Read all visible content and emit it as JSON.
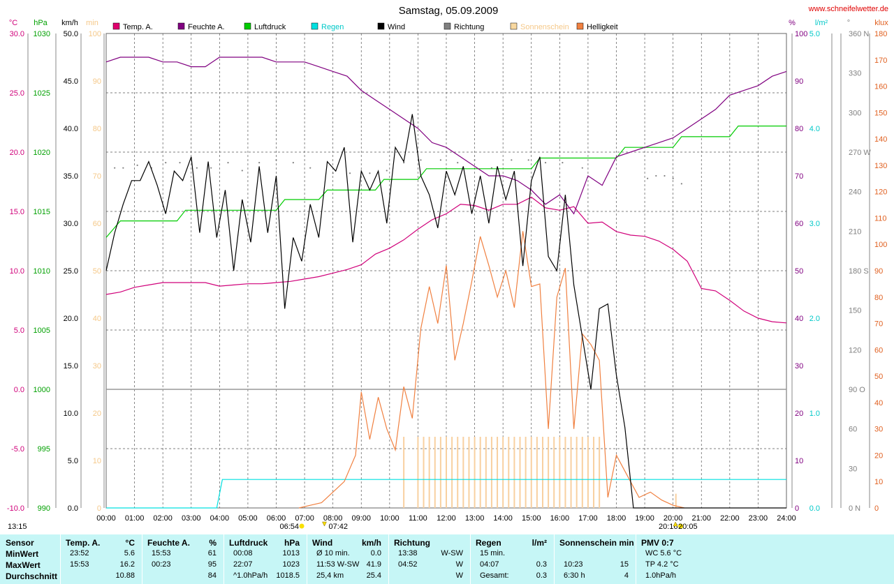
{
  "header": {
    "title": "Samstag, 05.09.2009",
    "site": "www.schneifelwetter.de"
  },
  "axes": {
    "temp": {
      "unit": "°C",
      "color": "#d0007a",
      "ticks": [
        "30.0",
        "25.0",
        "20.0",
        "15.0",
        "10.0",
        "5.0",
        "0.0",
        "-5.0",
        "-10.0"
      ]
    },
    "press": {
      "unit": "hPa",
      "color": "#00a000",
      "ticks": [
        "1030",
        "1025",
        "1020",
        "1015",
        "1010",
        "1005",
        "1000",
        "995",
        "990"
      ]
    },
    "wind": {
      "unit": "km/h",
      "color": "#000000",
      "ticks": [
        "50.0",
        "45.0",
        "40.0",
        "35.0",
        "30.0",
        "25.0",
        "20.0",
        "15.0",
        "10.0",
        "5.0",
        "0.0"
      ]
    },
    "sun": {
      "unit": "min",
      "color": "#f5c888",
      "ticks": [
        "100",
        "90",
        "80",
        "70",
        "60",
        "50",
        "40",
        "30",
        "20",
        "10",
        "0"
      ]
    },
    "hum": {
      "unit": "%",
      "color": "#800080",
      "ticks": [
        "100",
        "90",
        "80",
        "70",
        "60",
        "50",
        "40",
        "30",
        "20",
        "10",
        "0"
      ]
    },
    "rain": {
      "unit": "l/m²",
      "color": "#00c8c8",
      "ticks": [
        "5.0",
        "4.0",
        "3.0",
        "2.0",
        "1.0",
        "0.0"
      ]
    },
    "dir": {
      "unit": "°",
      "color": "#808080",
      "ticks": [
        "360 N",
        "330",
        "300",
        "270 W",
        "240",
        "210",
        "180 S",
        "150",
        "120",
        "90 O",
        "60",
        "30",
        "0 N"
      ]
    },
    "lux": {
      "unit": "klux",
      "color": "#e06020",
      "ticks": [
        "180",
        "170",
        "160",
        "150",
        "140",
        "130",
        "120",
        "110",
        "100",
        "90",
        "80",
        "70",
        "60",
        "50",
        "40",
        "30",
        "20",
        "10",
        "0"
      ]
    }
  },
  "legend": [
    {
      "label": "Temp. A.",
      "color": "#e0006e",
      "text_color": "#000000"
    },
    {
      "label": "Feuchte A.",
      "color": "#800080",
      "text_color": "#000000"
    },
    {
      "label": "Luftdruck",
      "color": "#00cc00",
      "text_color": "#000000"
    },
    {
      "label": "Regen",
      "color": "#00e0e0",
      "text_color": "#00c8c8"
    },
    {
      "label": "Wind",
      "color": "#000000",
      "text_color": "#000000"
    },
    {
      "label": "Richtung",
      "color": "#808080",
      "text_color": "#000000"
    },
    {
      "label": "Sonnenschein",
      "color": "#f8d8a0",
      "text_color": "#f5c888"
    },
    {
      "label": "Helligkeit",
      "color": "#f08040",
      "text_color": "#000000"
    }
  ],
  "chart_data": {
    "type": "line",
    "title": "Samstag, 05.09.2009",
    "x_ticks": [
      "00:00",
      "01:00",
      "02:00",
      "03:00",
      "04:00",
      "05:00",
      "06:00",
      "07:00",
      "08:00",
      "09:00",
      "10:00",
      "11:00",
      "12:00",
      "13:00",
      "14:00",
      "15:00",
      "16:00",
      "17:00",
      "18:00",
      "19:00",
      "20:00",
      "21:00",
      "22:00",
      "23:00",
      "24:00"
    ],
    "xlim": [
      0,
      24
    ],
    "grid": true,
    "legend_position": "top",
    "sun_events": {
      "sunrise": "06:54",
      "sunset": "20:16",
      "first_sun": "07:42",
      "last_sun": "20:05"
    },
    "series": [
      {
        "name": "Temp. A.",
        "axis": "temp",
        "color": "#d0007a",
        "x": [
          0,
          0.5,
          1,
          1.5,
          2,
          2.5,
          3,
          3.5,
          4,
          4.5,
          5,
          5.5,
          6,
          6.5,
          7,
          7.5,
          8,
          8.5,
          9,
          9.5,
          10,
          10.5,
          11,
          11.5,
          12,
          12.5,
          13,
          13.5,
          14,
          14.5,
          15,
          15.5,
          16,
          16.5,
          17,
          17.5,
          18,
          18.5,
          19,
          19.5,
          20,
          20.5,
          21,
          21.5,
          22,
          22.5,
          23,
          23.5,
          24
        ],
        "y": [
          8.0,
          8.2,
          8.6,
          8.8,
          9.0,
          9.0,
          9.0,
          9.0,
          8.7,
          8.8,
          8.9,
          8.9,
          9.0,
          9.1,
          9.3,
          9.5,
          9.8,
          10.1,
          10.5,
          11.4,
          11.9,
          12.6,
          13.5,
          14.3,
          14.8,
          15.6,
          15.5,
          15.1,
          15.6,
          15.6,
          16.2,
          15.3,
          15.1,
          15.4,
          14.0,
          14.1,
          13.3,
          13.0,
          12.9,
          12.5,
          11.8,
          10.8,
          8.5,
          8.3,
          7.5,
          6.6,
          6.0,
          5.7,
          5.6
        ]
      },
      {
        "name": "Feuchte A.",
        "axis": "hum",
        "color": "#800080",
        "x": [
          0,
          0.5,
          1,
          1.5,
          2,
          2.5,
          3,
          3.5,
          4,
          4.5,
          5,
          5.5,
          6,
          6.5,
          7,
          7.5,
          8,
          8.5,
          9,
          9.5,
          10,
          10.5,
          11,
          11.5,
          12,
          12.5,
          13,
          13.5,
          14,
          14.5,
          15,
          15.5,
          16,
          16.5,
          17,
          17.5,
          18,
          18.5,
          19,
          19.5,
          20,
          20.5,
          21,
          21.5,
          22,
          22.5,
          23,
          23.5,
          24
        ],
        "y": [
          94,
          95,
          95,
          95,
          94,
          94,
          93,
          93,
          95,
          95,
          95,
          95,
          94,
          94,
          94,
          93,
          92,
          91,
          88,
          86,
          84,
          82,
          80,
          77,
          76,
          74,
          72,
          70,
          70,
          69,
          67,
          64,
          66,
          62,
          70,
          68,
          74,
          75,
          76,
          77,
          78,
          80,
          82,
          84,
          87,
          88,
          89,
          91,
          92
        ]
      },
      {
        "name": "Luftdruck",
        "axis": "press",
        "color": "#00cc00",
        "x": [
          0,
          0.5,
          2.5,
          2.8,
          6,
          6.3,
          7.5,
          7.8,
          9.5,
          9.8,
          11,
          11.3,
          15,
          15.3,
          18,
          18.3,
          20,
          20.3,
          22,
          22.3,
          24
        ],
        "y": [
          1012.8,
          1014.2,
          1014.2,
          1015.1,
          1015.1,
          1016.0,
          1016.0,
          1016.8,
          1016.8,
          1017.7,
          1017.7,
          1018.6,
          1018.6,
          1019.5,
          1019.5,
          1020.4,
          1020.4,
          1021.3,
          1021.3,
          1022.2,
          1022.2
        ]
      },
      {
        "name": "Regen",
        "axis": "rain",
        "color": "#00e0e0",
        "x": [
          0,
          3.9,
          4.1,
          24
        ],
        "y": [
          0,
          0,
          0.3,
          0.3
        ]
      },
      {
        "name": "Wind",
        "axis": "wind",
        "color": "#000000",
        "x": [
          0,
          0.3,
          0.6,
          0.9,
          1.2,
          1.5,
          1.8,
          2.1,
          2.4,
          2.7,
          3.0,
          3.3,
          3.6,
          3.9,
          4.2,
          4.5,
          4.8,
          5.1,
          5.4,
          5.7,
          6.0,
          6.3,
          6.6,
          6.9,
          7.2,
          7.5,
          7.8,
          8.1,
          8.4,
          8.7,
          9.0,
          9.3,
          9.6,
          9.9,
          10.2,
          10.5,
          10.8,
          11.1,
          11.4,
          11.7,
          12.0,
          12.3,
          12.6,
          12.9,
          13.2,
          13.5,
          13.8,
          14.1,
          14.4,
          14.7,
          15.0,
          15.3,
          15.6,
          15.9,
          16.2,
          16.5,
          16.8,
          17.1,
          17.4,
          17.7,
          18.0,
          18.3,
          18.6,
          18.9,
          19.2,
          19.5,
          19.8,
          20.1,
          20.4,
          20.7,
          21.0,
          22.0,
          23.0,
          24.0
        ],
        "y": [
          25.0,
          29.0,
          32.0,
          34.5,
          34.5,
          36.5,
          34.0,
          31.0,
          35.5,
          34.5,
          37.0,
          29.0,
          36.5,
          28.5,
          33.5,
          25.0,
          32.5,
          28.0,
          36.0,
          29.0,
          35.0,
          21.0,
          28.5,
          26.0,
          32.0,
          28.5,
          36.5,
          35.5,
          38.0,
          28.0,
          35.5,
          33.5,
          35.5,
          30.0,
          38.0,
          36.5,
          41.5,
          35.0,
          33.0,
          29.5,
          35.5,
          33.0,
          36.0,
          31.0,
          35.0,
          30.0,
          36.0,
          32.5,
          35.5,
          25.5,
          34.5,
          37.0,
          26.5,
          25.0,
          33.0,
          23.5,
          18.0,
          12.5,
          21.0,
          21.5,
          14.0,
          8.5,
          0.0,
          0.0,
          0.0,
          0.0,
          0.0,
          0.0,
          0.0,
          0.0,
          0.0,
          0.0,
          0.0,
          0.0
        ]
      },
      {
        "name": "Richtung",
        "axis": "dir",
        "color": "#808080",
        "style": "dots",
        "x": [
          0.3,
          0.6,
          1.1,
          1.6,
          2.1,
          2.6,
          3.2,
          3.7,
          4.3,
          4.8,
          5.4,
          6.0,
          6.6,
          7.2,
          8.0,
          8.6,
          9.3,
          9.9,
          10.5,
          11.1,
          11.8,
          12.4,
          13.0,
          13.6,
          14.3,
          14.9,
          15.5,
          16.1,
          16.8,
          19.1,
          19.4,
          19.7,
          20.0,
          20.3
        ],
        "y": [
          258,
          258,
          260,
          258,
          262,
          262,
          258,
          258,
          262,
          256,
          262,
          264,
          262,
          258,
          254,
          254,
          254,
          256,
          262,
          264,
          264,
          262,
          264,
          258,
          264,
          264,
          262,
          262,
          258,
          250,
          252,
          252,
          250,
          246
        ]
      },
      {
        "name": "Sonnenschein",
        "axis": "sun",
        "color": "#f8d0a0",
        "style": "bars",
        "x": [
          10.5,
          11.0,
          11.2,
          11.4,
          11.6,
          11.8,
          12.0,
          12.2,
          12.4,
          12.6,
          12.8,
          13.0,
          13.2,
          13.4,
          13.6,
          13.8,
          14.0,
          14.2,
          14.4,
          14.6,
          14.8,
          15.0,
          15.2,
          15.4,
          15.6,
          15.8,
          16.0,
          16.2,
          16.4,
          16.6,
          16.8,
          17.0,
          17.2,
          17.4,
          20.1
        ],
        "y": [
          15,
          15,
          15,
          15,
          15,
          15,
          15,
          15,
          15,
          15,
          15,
          15,
          15,
          15,
          15,
          15,
          15,
          15,
          15,
          15,
          15,
          15,
          15,
          15,
          15,
          15,
          15,
          15,
          15,
          15,
          15,
          15,
          15,
          15,
          3
        ]
      },
      {
        "name": "Helligkeit",
        "axis": "lux",
        "color": "#f08040",
        "x": [
          6.8,
          7.2,
          7.6,
          8.0,
          8.4,
          8.8,
          9.0,
          9.3,
          9.6,
          9.9,
          10.2,
          10.5,
          10.8,
          11.1,
          11.4,
          11.7,
          12.0,
          12.3,
          12.6,
          12.9,
          13.2,
          13.5,
          13.8,
          14.1,
          14.4,
          14.7,
          15.0,
          15.3,
          15.6,
          15.9,
          16.2,
          16.5,
          16.8,
          17.1,
          17.4,
          17.7,
          18.0,
          18.4,
          18.8,
          19.2,
          19.6,
          20.0,
          20.4
        ],
        "y": [
          0,
          1,
          2,
          6,
          10,
          20,
          44,
          26,
          42,
          30,
          22,
          46,
          34,
          68,
          84,
          70,
          92,
          56,
          70,
          86,
          103,
          92,
          80,
          90,
          76,
          105,
          84,
          85,
          30,
          80,
          91,
          30,
          66,
          62,
          56,
          4,
          20,
          12,
          4,
          6,
          3,
          1,
          0
        ]
      }
    ]
  },
  "stats": {
    "rows": [
      "Sensor",
      "MinWert",
      "MaxWert",
      "Durchschnitt"
    ],
    "columns": [
      {
        "title": "Temp. A.",
        "unit": "°C",
        "cells": [
          [
            "23:52",
            "5.6"
          ],
          [
            "15:53",
            "16.2"
          ],
          [
            "",
            "10.88"
          ]
        ]
      },
      {
        "title": "Feuchte A.",
        "unit": "%",
        "cells": [
          [
            "15:53",
            "61"
          ],
          [
            "00:23",
            "95"
          ],
          [
            "",
            "84"
          ]
        ]
      },
      {
        "title": "Luftdruck",
        "unit": "hPa",
        "cells": [
          [
            "00:08",
            "1013"
          ],
          [
            "22:07",
            "1023"
          ],
          [
            "^1.0hPa/h",
            "1018.5"
          ]
        ]
      },
      {
        "title": "Wind",
        "unit": "km/h",
        "cells": [
          [
            "Ø 10 min.",
            "0.0"
          ],
          [
            "11:53   W-SW",
            "41.9"
          ],
          [
            "25,4 km",
            "25.4"
          ]
        ]
      },
      {
        "title": "Richtung",
        "unit": "",
        "cells": [
          [
            "13:38",
            "W-SW"
          ],
          [
            "04:52",
            "W"
          ],
          [
            "",
            "W"
          ]
        ]
      },
      {
        "title": "Regen",
        "unit": "l/m²",
        "cells": [
          [
            "15 min.",
            ""
          ],
          [
            "04:07",
            "0.3"
          ],
          [
            "Gesamt:",
            "0.3"
          ]
        ]
      },
      {
        "title": "Sonnenschein min",
        "unit": "",
        "cells": [
          [
            "",
            ""
          ],
          [
            "10:23",
            "15"
          ],
          [
            "6:30 h",
            "4"
          ]
        ]
      },
      {
        "title": "PMV 0:7",
        "unit": "",
        "cells": [
          [
            "WC 5.6 °C",
            ""
          ],
          [
            "TP 4.2 °C",
            ""
          ],
          [
            "1.0hPa/h",
            ""
          ]
        ]
      }
    ]
  }
}
